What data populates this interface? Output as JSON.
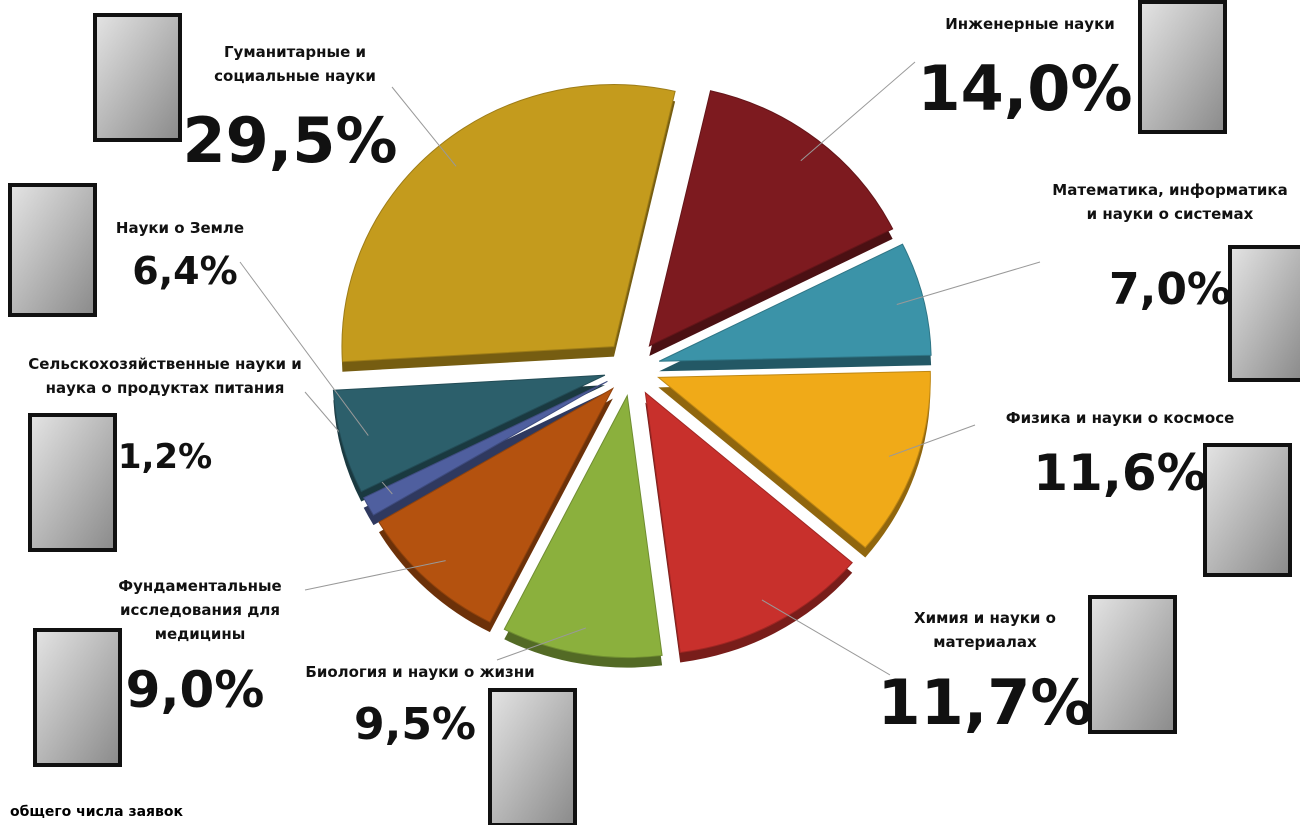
{
  "chart_data": {
    "type": "pie",
    "categories": [
      "Инженерные науки",
      "Математика, информатика и науки о системах",
      "Физика и науки о космосе",
      "Химия и науки о материалах",
      "Биология и науки о жизни",
      "Фундаментальные исследования для медицины",
      "Сельскохозяйственные науки и наука о продуктах питания",
      "Науки о Земле",
      "Гуманитарные и социальные науки"
    ],
    "values": [
      14.0,
      7.0,
      11.6,
      11.7,
      9.5,
      9.0,
      1.2,
      6.4,
      29.5
    ],
    "value_labels": [
      "14,0%",
      "7,0%",
      "11,6%",
      "11,7%",
      "9,5%",
      "9,0%",
      "1,2%",
      "6,4%",
      "29,5%"
    ],
    "colors": [
      "#7d1a1f",
      "#3b93a8",
      "#f0aa18",
      "#c8302c",
      "#8bb03d",
      "#b4520f",
      "#4f5f9f",
      "#2c5f6b",
      "#c49b1d"
    ],
    "footnote": "общего числа заявок"
  }
}
